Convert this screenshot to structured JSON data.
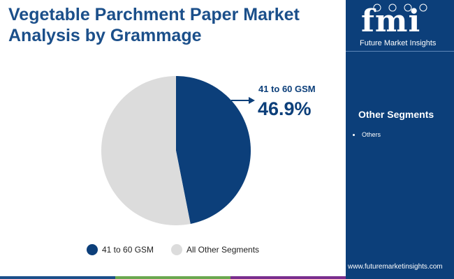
{
  "title": "Vegetable Parchment Paper Market Analysis by Grammage",
  "logo": {
    "letters": "fmi",
    "name": "Future Market Insights"
  },
  "sidebar": {
    "heading": "Other Segments",
    "items": [
      "Others"
    ]
  },
  "website": "www.futuremarketinsights.com",
  "colors": {
    "primary": "#0c3f7a",
    "secondary": "#dcdcdc",
    "bar": [
      "#1b4f8a",
      "#6aa84f",
      "#ff6a13",
      "#7a2e8e",
      "#0c3f7a"
    ]
  },
  "callout": {
    "label": "41 to 60 GSM",
    "value": "46.9%"
  },
  "chart_data": {
    "type": "pie",
    "title": "",
    "slices": [
      {
        "label": "41 to 60 GSM",
        "value": 46.9,
        "color": "#0c3f7a"
      },
      {
        "label": "All Other Segments",
        "value": 53.1,
        "color": "#dcdcdc"
      }
    ],
    "start_angle_deg": 0,
    "legend_position": "bottom"
  }
}
